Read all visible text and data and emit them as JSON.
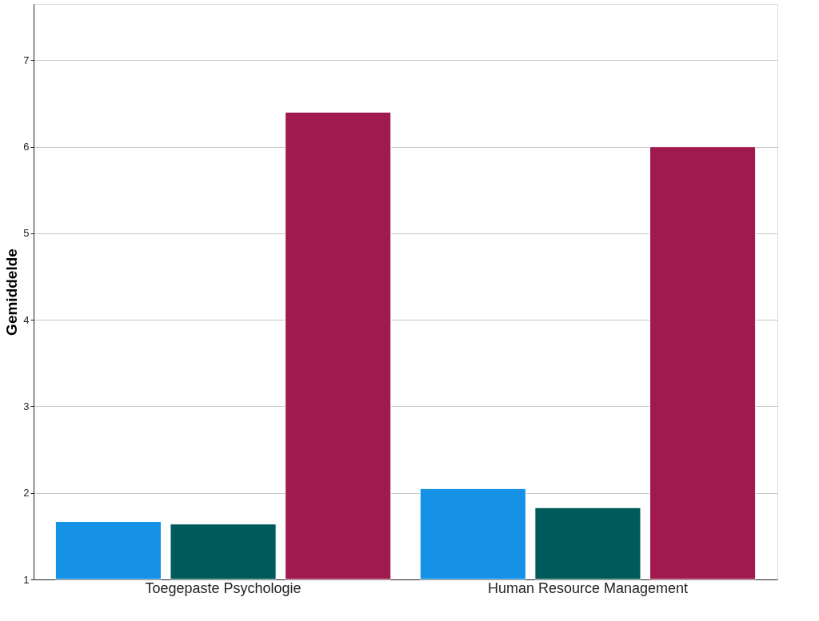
{
  "chart_data": {
    "type": "bar",
    "ylabel": "Gemiddelde",
    "categories": [
      "Toegepaste Psychologie",
      "Human Resource Management"
    ],
    "series": [
      {
        "color": "#1591e6",
        "values": [
          1.67,
          2.05
        ]
      },
      {
        "color": "#005a5a",
        "values": [
          1.64,
          1.83
        ]
      },
      {
        "color": "#a0194f",
        "values": [
          6.4,
          6.0
        ]
      }
    ],
    "ylim": [
      1,
      7.65
    ],
    "yticks": [
      1,
      2,
      3,
      4,
      5,
      6,
      7
    ],
    "grid": "y",
    "legend": false
  }
}
